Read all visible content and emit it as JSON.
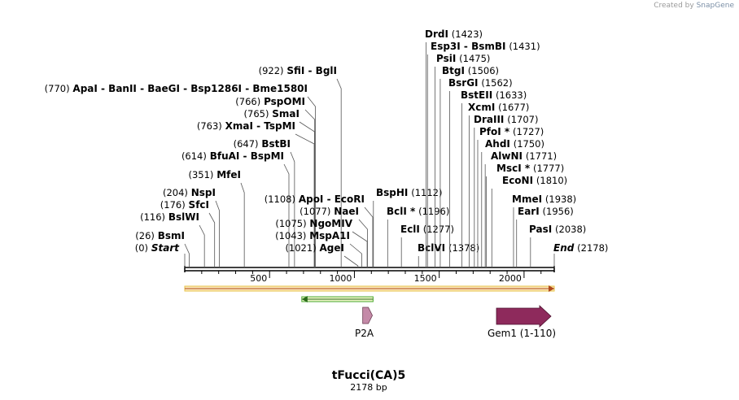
{
  "credit": {
    "prefix": "Created by",
    "brand": "SnapGene"
  },
  "title": "tFucci(CA)5",
  "subtitle": "2178 bp",
  "total_bp": 2178,
  "axis_ticks": [
    500,
    1000,
    1500,
    2000
  ],
  "colors": {
    "line": "#000000",
    "orf": "#e7c34a",
    "orf_fill": "#fbe6b8",
    "green": "#4aa830",
    "p2a": "#c48aa8",
    "gem": "#8e2a5c"
  },
  "sites": [
    {
      "name": "Start",
      "pos": 0,
      "num": "(0)",
      "side": "L",
      "italic": true
    },
    {
      "name": "BsmI",
      "pos": 26,
      "num": "(26)",
      "side": "L"
    },
    {
      "name": "BslWI",
      "pos": 116,
      "num": "(116)",
      "side": "L"
    },
    {
      "name": "SfcI",
      "pos": 176,
      "num": "(176)",
      "side": "L"
    },
    {
      "name": "NspI",
      "pos": 204,
      "num": "(204)",
      "side": "L"
    },
    {
      "name": "MfeI",
      "pos": 351,
      "num": "(351)",
      "side": "L"
    },
    {
      "name": "BfuAI  -  BspMI",
      "pos": 614,
      "num": "(614)",
      "side": "L"
    },
    {
      "name": "BstBI",
      "pos": 647,
      "num": "(647)",
      "side": "L"
    },
    {
      "name": "XmaI  -  TspMI",
      "pos": 763,
      "num": "(763)",
      "side": "L"
    },
    {
      "name": "SmaI",
      "pos": 765,
      "num": "(765)",
      "side": "L"
    },
    {
      "name": "PspOMI",
      "pos": 766,
      "num": "(766)",
      "side": "L"
    },
    {
      "name": "ApaI  -  BanII  -  BaeGI  -  Bsp1286I  -  Bme1580I",
      "pos": 770,
      "num": "(770)",
      "side": "L"
    },
    {
      "name": "SfiI  -  BglI",
      "pos": 922,
      "num": "(922)",
      "side": "L"
    },
    {
      "name": "AgeI",
      "pos": 1021,
      "num": "(1021)",
      "side": "L"
    },
    {
      "name": "MspA1I",
      "pos": 1043,
      "num": "(1043)",
      "side": "L"
    },
    {
      "name": "NgoMIV",
      "pos": 1075,
      "num": "(1075)",
      "side": "L"
    },
    {
      "name": "NaeI",
      "pos": 1077,
      "num": "(1077)",
      "side": "L"
    },
    {
      "name": "ApoI  -  EcoRI",
      "pos": 1108,
      "num": "(1108)",
      "side": "L"
    },
    {
      "name": "BspHI",
      "pos": 1112,
      "num": "(1112)",
      "side": "R"
    },
    {
      "name": "BclI *",
      "pos": 1196,
      "num": "(1196)",
      "side": "R"
    },
    {
      "name": "EclI",
      "pos": 1277,
      "num": "(1277)",
      "side": "R"
    },
    {
      "name": "BclVI",
      "pos": 1378,
      "num": "(1378)",
      "side": "R"
    },
    {
      "name": "DrdI",
      "pos": 1423,
      "num": "(1423)",
      "side": "R"
    },
    {
      "name": "Esp3I  -  BsmBI",
      "pos": 1431,
      "num": "(1431)",
      "side": "R"
    },
    {
      "name": "PsiI",
      "pos": 1475,
      "num": "(1475)",
      "side": "R"
    },
    {
      "name": "BtgI",
      "pos": 1506,
      "num": "(1506)",
      "side": "R"
    },
    {
      "name": "BsrGI",
      "pos": 1562,
      "num": "(1562)",
      "side": "R"
    },
    {
      "name": "BstEII",
      "pos": 1633,
      "num": "(1633)",
      "side": "R"
    },
    {
      "name": "XcmI",
      "pos": 1677,
      "num": "(1677)",
      "side": "R"
    },
    {
      "name": "DraIII",
      "pos": 1707,
      "num": "(1707)",
      "side": "R"
    },
    {
      "name": "PfoI *",
      "pos": 1727,
      "num": "(1727)",
      "side": "R"
    },
    {
      "name": "AhdI",
      "pos": 1750,
      "num": "(1750)",
      "side": "R"
    },
    {
      "name": "AlwNI",
      "pos": 1771,
      "num": "(1771)",
      "side": "R"
    },
    {
      "name": "MscI *",
      "pos": 1777,
      "num": "(1777)",
      "side": "R"
    },
    {
      "name": "EcoNI",
      "pos": 1810,
      "num": "(1810)",
      "side": "R"
    },
    {
      "name": "MmeI",
      "pos": 1938,
      "num": "(1938)",
      "side": "R"
    },
    {
      "name": "EarI",
      "pos": 1956,
      "num": "(1956)",
      "side": "R"
    },
    {
      "name": "PasI",
      "pos": 2038,
      "num": "(2038)",
      "side": "R"
    },
    {
      "name": "End",
      "pos": 2178,
      "num": "(2178)",
      "side": "R",
      "italic": true
    }
  ],
  "features": [
    {
      "name": "orf-full",
      "start": 0,
      "end": 2178,
      "direction": "forward",
      "label": ""
    },
    {
      "name": "green-feature",
      "start": 690,
      "end": 1110,
      "direction": "reverse",
      "label": ""
    },
    {
      "name": "P2A",
      "start": 1049,
      "end": 1106,
      "direction": "forward",
      "label": "P2A"
    },
    {
      "name": "Gem1",
      "start": 1850,
      "end": 2178,
      "direction": "forward",
      "label": "Gem1 (1-110)"
    }
  ]
}
